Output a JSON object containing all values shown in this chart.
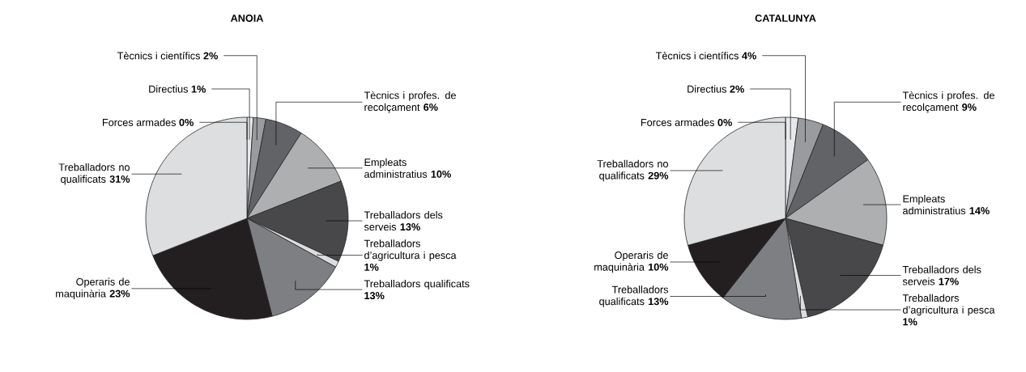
{
  "chart_data": [
    {
      "type": "pie",
      "title": "ANOIA",
      "categories": [
        "Forces armades",
        "Directius",
        "Tècnics i científics",
        "Tècnics i profes. de recolçament",
        "Empleats administratius",
        "Treballadors dels serveis",
        "Treballadors d’agricultura i pesca",
        "Treballadors qualificats",
        "Operaris de maquinària",
        "Treballadors no qualificats"
      ],
      "values": [
        0,
        1,
        2,
        6,
        10,
        13,
        1,
        13,
        23,
        31
      ],
      "value_labels": [
        "0%",
        "1%",
        "2%",
        "6%",
        "10%",
        "13%",
        "1%",
        "13%",
        "23%",
        "31%"
      ],
      "colors": [
        "#f4f4f5",
        "#e8e9eb",
        "#9a9b9e",
        "#626366",
        "#adafb1",
        "#48484a",
        "#dcdddf",
        "#7e7f82",
        "#231f20",
        "#dddee0"
      ]
    },
    {
      "type": "pie",
      "title": "CATALUNYA",
      "categories": [
        "Forces armades",
        "Directius",
        "Tècnics i científics",
        "Tècnics i profes. de recolçament",
        "Empleats administratius",
        "Treballadors dels serveis",
        "Treballadors d’agricultura i pesca",
        "Treballadors qualificats",
        "Operaris de maquinària",
        "Treballadors no qualificats"
      ],
      "values": [
        0,
        2,
        4,
        9,
        14,
        17,
        1,
        13,
        10,
        29
      ],
      "value_labels": [
        "0%",
        "2%",
        "4%",
        "9%",
        "14%",
        "17%",
        "1%",
        "13%",
        "10%",
        "29%"
      ],
      "colors": [
        "#f4f4f5",
        "#e8e9eb",
        "#9a9b9e",
        "#626366",
        "#adafb1",
        "#48484a",
        "#dcdddf",
        "#7e7f82",
        "#231f20",
        "#dddee0"
      ]
    }
  ]
}
